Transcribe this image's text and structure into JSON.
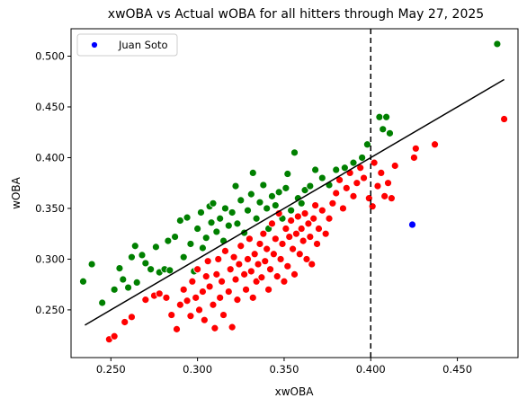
{
  "chart_data": {
    "type": "scatter",
    "title": "xwOBA vs Actual wOBA for all hitters through May 27, 2025",
    "xlabel": "xwOBA",
    "ylabel": "wOBA",
    "xlim": [
      0.227,
      0.485
    ],
    "ylim": [
      0.203,
      0.527
    ],
    "xticks": [
      0.25,
      0.3,
      0.35,
      0.4,
      0.45
    ],
    "xtick_labels": [
      "0.250",
      "0.300",
      "0.350",
      "0.400",
      "0.450"
    ],
    "yticks": [
      0.25,
      0.3,
      0.35,
      0.4,
      0.45,
      0.5
    ],
    "ytick_labels": [
      "0.250",
      "0.300",
      "0.350",
      "0.400",
      "0.450",
      "0.500"
    ],
    "grid": false,
    "legend": {
      "position": "top-left",
      "entries": [
        {
          "label": "Juan Soto",
          "color": "#0000ff"
        }
      ]
    },
    "reference_line": {
      "x": [
        0.235,
        0.477
      ],
      "y": [
        0.235,
        0.477
      ],
      "color": "#000000"
    },
    "vertical_line": {
      "x": 0.4,
      "style": "dashed",
      "color": "#000000"
    },
    "highlight": {
      "name": "Juan Soto",
      "x": 0.424,
      "y": 0.334,
      "color": "#0000ff"
    },
    "series": [
      {
        "color": "#008000",
        "points": [
          [
            0.234,
            0.278
          ],
          [
            0.239,
            0.295
          ],
          [
            0.245,
            0.257
          ],
          [
            0.252,
            0.27
          ],
          [
            0.255,
            0.291
          ],
          [
            0.257,
            0.28
          ],
          [
            0.26,
            0.272
          ],
          [
            0.262,
            0.302
          ],
          [
            0.264,
            0.313
          ],
          [
            0.265,
            0.277
          ],
          [
            0.268,
            0.304
          ],
          [
            0.27,
            0.296
          ],
          [
            0.273,
            0.29
          ],
          [
            0.276,
            0.312
          ],
          [
            0.278,
            0.287
          ],
          [
            0.281,
            0.29
          ],
          [
            0.283,
            0.318
          ],
          [
            0.284,
            0.289
          ],
          [
            0.287,
            0.322
          ],
          [
            0.29,
            0.338
          ],
          [
            0.292,
            0.302
          ],
          [
            0.294,
            0.341
          ],
          [
            0.296,
            0.315
          ],
          [
            0.298,
            0.288
          ],
          [
            0.3,
            0.33
          ],
          [
            0.302,
            0.346
          ],
          [
            0.303,
            0.311
          ],
          [
            0.305,
            0.321
          ],
          [
            0.307,
            0.352
          ],
          [
            0.308,
            0.336
          ],
          [
            0.309,
            0.355
          ],
          [
            0.311,
            0.327
          ],
          [
            0.313,
            0.34
          ],
          [
            0.315,
            0.318
          ],
          [
            0.316,
            0.35
          ],
          [
            0.318,
            0.333
          ],
          [
            0.32,
            0.346
          ],
          [
            0.322,
            0.372
          ],
          [
            0.323,
            0.335
          ],
          [
            0.325,
            0.358
          ],
          [
            0.327,
            0.326
          ],
          [
            0.329,
            0.348
          ],
          [
            0.331,
            0.364
          ],
          [
            0.332,
            0.385
          ],
          [
            0.334,
            0.34
          ],
          [
            0.336,
            0.356
          ],
          [
            0.338,
            0.373
          ],
          [
            0.34,
            0.35
          ],
          [
            0.341,
            0.33
          ],
          [
            0.343,
            0.362
          ],
          [
            0.345,
            0.353
          ],
          [
            0.347,
            0.366
          ],
          [
            0.349,
            0.34
          ],
          [
            0.351,
            0.37
          ],
          [
            0.352,
            0.384
          ],
          [
            0.354,
            0.348
          ],
          [
            0.356,
            0.405
          ],
          [
            0.358,
            0.36
          ],
          [
            0.36,
            0.355
          ],
          [
            0.362,
            0.368
          ],
          [
            0.365,
            0.372
          ],
          [
            0.368,
            0.388
          ],
          [
            0.372,
            0.38
          ],
          [
            0.376,
            0.373
          ],
          [
            0.38,
            0.388
          ],
          [
            0.385,
            0.39
          ],
          [
            0.39,
            0.395
          ],
          [
            0.395,
            0.4
          ],
          [
            0.398,
            0.413
          ],
          [
            0.405,
            0.44
          ],
          [
            0.407,
            0.428
          ],
          [
            0.409,
            0.44
          ],
          [
            0.411,
            0.424
          ],
          [
            0.473,
            0.512
          ]
        ]
      },
      {
        "color": "#ff0000",
        "points": [
          [
            0.249,
            0.221
          ],
          [
            0.252,
            0.224
          ],
          [
            0.258,
            0.238
          ],
          [
            0.262,
            0.243
          ],
          [
            0.27,
            0.26
          ],
          [
            0.275,
            0.264
          ],
          [
            0.278,
            0.266
          ],
          [
            0.282,
            0.262
          ],
          [
            0.285,
            0.245
          ],
          [
            0.288,
            0.231
          ],
          [
            0.29,
            0.255
          ],
          [
            0.292,
            0.27
          ],
          [
            0.294,
            0.259
          ],
          [
            0.296,
            0.244
          ],
          [
            0.297,
            0.278
          ],
          [
            0.299,
            0.262
          ],
          [
            0.3,
            0.29
          ],
          [
            0.301,
            0.25
          ],
          [
            0.303,
            0.268
          ],
          [
            0.304,
            0.24
          ],
          [
            0.305,
            0.283
          ],
          [
            0.306,
            0.298
          ],
          [
            0.307,
            0.273
          ],
          [
            0.309,
            0.255
          ],
          [
            0.31,
            0.232
          ],
          [
            0.311,
            0.285
          ],
          [
            0.312,
            0.3
          ],
          [
            0.313,
            0.262
          ],
          [
            0.314,
            0.278
          ],
          [
            0.315,
            0.245
          ],
          [
            0.316,
            0.308
          ],
          [
            0.318,
            0.268
          ],
          [
            0.319,
            0.29
          ],
          [
            0.32,
            0.233
          ],
          [
            0.321,
            0.302
          ],
          [
            0.322,
            0.28
          ],
          [
            0.323,
            0.26
          ],
          [
            0.324,
            0.295
          ],
          [
            0.325,
            0.313
          ],
          [
            0.327,
            0.285
          ],
          [
            0.328,
            0.27
          ],
          [
            0.329,
            0.3
          ],
          [
            0.33,
            0.32
          ],
          [
            0.331,
            0.288
          ],
          [
            0.332,
            0.262
          ],
          [
            0.333,
            0.305
          ],
          [
            0.334,
            0.278
          ],
          [
            0.335,
            0.295
          ],
          [
            0.336,
            0.315
          ],
          [
            0.337,
            0.282
          ],
          [
            0.338,
            0.325
          ],
          [
            0.339,
            0.298
          ],
          [
            0.34,
            0.31
          ],
          [
            0.341,
            0.27
          ],
          [
            0.342,
            0.29
          ],
          [
            0.343,
            0.335
          ],
          [
            0.344,
            0.305
          ],
          [
            0.345,
            0.32
          ],
          [
            0.346,
            0.283
          ],
          [
            0.347,
            0.345
          ],
          [
            0.348,
            0.3
          ],
          [
            0.349,
            0.315
          ],
          [
            0.35,
            0.278
          ],
          [
            0.351,
            0.33
          ],
          [
            0.352,
            0.293
          ],
          [
            0.353,
            0.322
          ],
          [
            0.354,
            0.338
          ],
          [
            0.355,
            0.31
          ],
          [
            0.356,
            0.285
          ],
          [
            0.357,
            0.325
          ],
          [
            0.358,
            0.342
          ],
          [
            0.359,
            0.305
          ],
          [
            0.36,
            0.33
          ],
          [
            0.361,
            0.318
          ],
          [
            0.362,
            0.345
          ],
          [
            0.363,
            0.3
          ],
          [
            0.364,
            0.335
          ],
          [
            0.365,
            0.322
          ],
          [
            0.366,
            0.295
          ],
          [
            0.367,
            0.34
          ],
          [
            0.368,
            0.353
          ],
          [
            0.369,
            0.315
          ],
          [
            0.37,
            0.33
          ],
          [
            0.372,
            0.348
          ],
          [
            0.374,
            0.325
          ],
          [
            0.376,
            0.34
          ],
          [
            0.378,
            0.355
          ],
          [
            0.38,
            0.365
          ],
          [
            0.382,
            0.378
          ],
          [
            0.384,
            0.35
          ],
          [
            0.386,
            0.37
          ],
          [
            0.388,
            0.385
          ],
          [
            0.39,
            0.362
          ],
          [
            0.392,
            0.375
          ],
          [
            0.394,
            0.39
          ],
          [
            0.396,
            0.38
          ],
          [
            0.399,
            0.36
          ],
          [
            0.401,
            0.352
          ],
          [
            0.402,
            0.395
          ],
          [
            0.404,
            0.372
          ],
          [
            0.406,
            0.385
          ],
          [
            0.408,
            0.362
          ],
          [
            0.41,
            0.375
          ],
          [
            0.412,
            0.36
          ],
          [
            0.414,
            0.392
          ],
          [
            0.425,
            0.4
          ],
          [
            0.426,
            0.409
          ],
          [
            0.437,
            0.413
          ],
          [
            0.477,
            0.438
          ]
        ]
      }
    ]
  }
}
